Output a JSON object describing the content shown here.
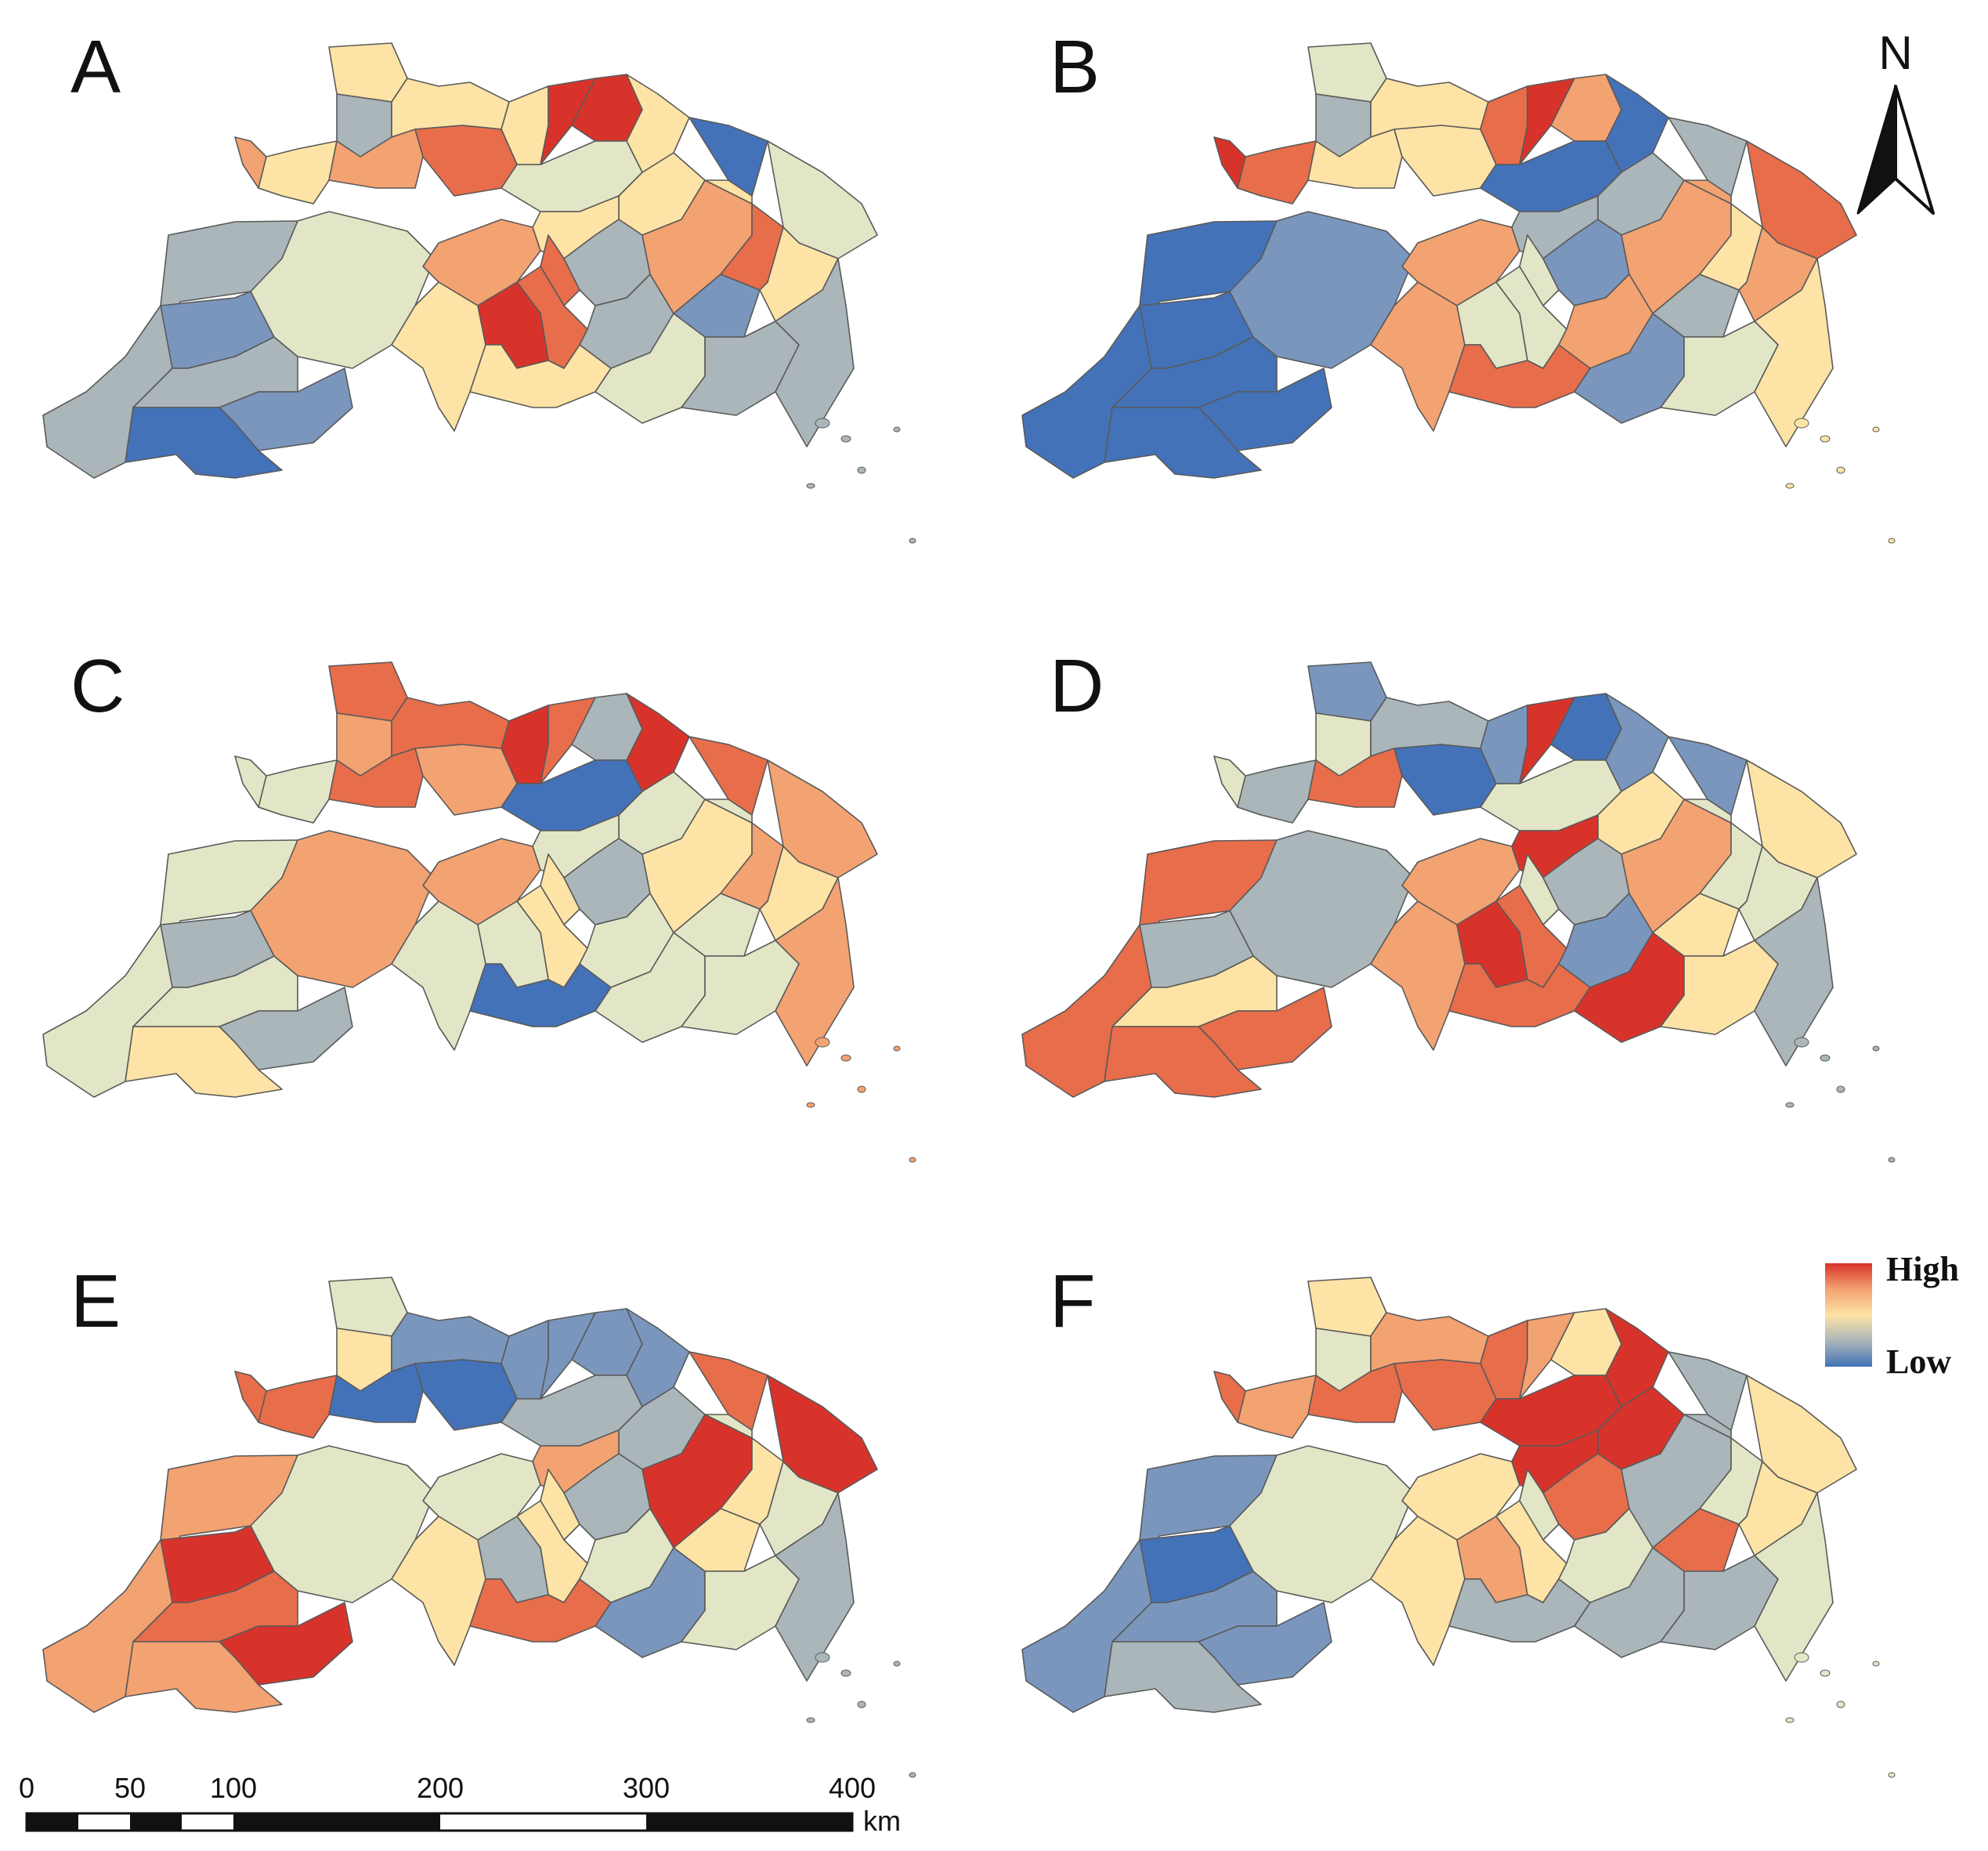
{
  "colors": {
    "c0": "#4472b8",
    "c1": "#7a96bd",
    "c2": "#aab6b9",
    "c3": "#e3e6c6",
    "c4": "#fde3a5",
    "c5": "#f3a271",
    "c6": "#e86d4a",
    "c7": "#d8332b"
  },
  "legend": {
    "high_label": "High",
    "low_label": "Low",
    "high_color": "#d8332b",
    "low_color": "#4472b8"
  },
  "north_arrow": {
    "label": "N"
  },
  "scale_bar": {
    "ticks": [
      "0",
      "50",
      "100",
      "200",
      "300",
      "400"
    ],
    "unit": "km"
  },
  "panels": [
    {
      "label": "A",
      "classes": [
        2,
        1,
        2,
        1,
        0,
        3,
        5,
        4,
        4,
        2,
        4,
        4,
        5,
        6,
        7,
        7,
        4,
        3,
        4,
        4,
        6,
        5,
        4,
        6,
        7,
        2,
        2,
        4,
        3,
        1,
        5,
        4,
        6,
        0,
        3,
        4,
        2,
        2
      ]
    },
    {
      "label": "B",
      "classes": [
        0,
        0,
        0,
        0,
        0,
        1,
        7,
        6,
        3,
        2,
        4,
        6,
        4,
        4,
        7,
        5,
        0,
        0,
        2,
        2,
        3,
        5,
        5,
        3,
        3,
        1,
        5,
        6,
        1,
        2,
        5,
        5,
        4,
        2,
        6,
        5,
        3,
        4
      ]
    },
    {
      "label": "C",
      "classes": [
        3,
        2,
        3,
        2,
        4,
        5,
        3,
        3,
        6,
        5,
        6,
        7,
        6,
        5,
        6,
        2,
        7,
        0,
        3,
        3,
        4,
        5,
        3,
        4,
        3,
        2,
        3,
        0,
        3,
        3,
        4,
        3,
        5,
        6,
        5,
        4,
        3,
        5
      ]
    },
    {
      "label": "D",
      "classes": [
        6,
        2,
        4,
        6,
        6,
        2,
        3,
        2,
        1,
        3,
        2,
        1,
        6,
        0,
        7,
        0,
        1,
        3,
        4,
        7,
        3,
        5,
        5,
        6,
        7,
        2,
        1,
        6,
        7,
        4,
        5,
        3,
        3,
        1,
        4,
        3,
        4,
        2
      ]
    },
    {
      "label": "E",
      "classes": [
        5,
        7,
        6,
        7,
        5,
        3,
        6,
        6,
        3,
        4,
        1,
        1,
        0,
        0,
        1,
        1,
        1,
        2,
        2,
        5,
        4,
        3,
        4,
        4,
        2,
        2,
        3,
        6,
        1,
        4,
        7,
        3,
        4,
        6,
        7,
        3,
        3,
        2
      ]
    },
    {
      "label": "F",
      "classes": [
        1,
        0,
        1,
        1,
        2,
        3,
        6,
        5,
        4,
        3,
        5,
        6,
        6,
        6,
        5,
        4,
        7,
        7,
        7,
        7,
        3,
        4,
        4,
        4,
        5,
        6,
        3,
        2,
        2,
        6,
        2,
        2,
        3,
        2,
        4,
        4,
        2,
        3
      ]
    }
  ]
}
